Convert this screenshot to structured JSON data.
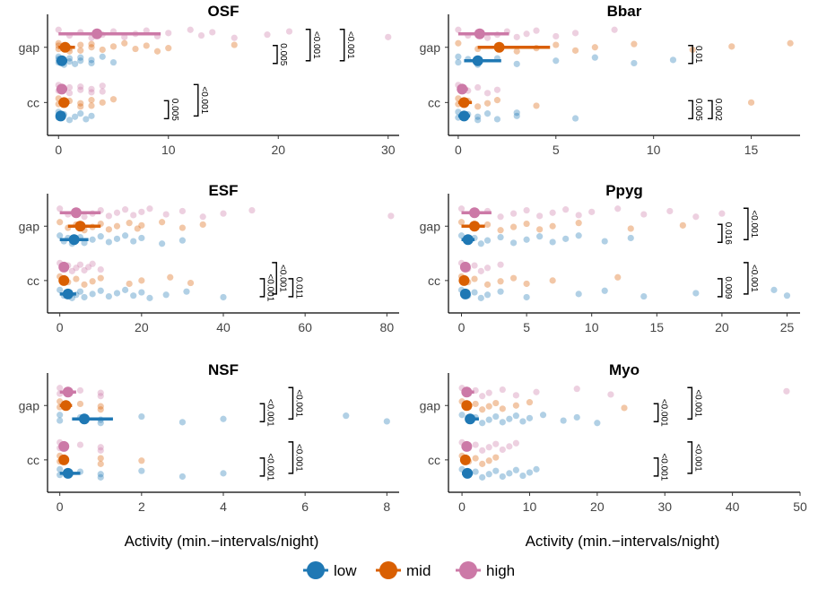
{
  "colors": {
    "low": "#1f78b4",
    "mid": "#d95f02",
    "high": "#cc79a7"
  },
  "xlabel": "Activity (min.−intervals/night)",
  "legend": {
    "position": "bottom",
    "items": [
      {
        "key": "low",
        "label": "low"
      },
      {
        "key": "mid",
        "label": "mid"
      },
      {
        "key": "high",
        "label": "high"
      }
    ]
  },
  "chart_data": [
    {
      "type": "scatter",
      "title": "OSF",
      "xlim": [
        -1,
        31
      ],
      "xticks": [
        0,
        10,
        20,
        30
      ],
      "yticks": [
        "gap",
        "cc"
      ],
      "series": {
        "gap": {
          "low": {
            "points": [
              0,
              0,
              0,
              0.5,
              1,
              1,
              1.5,
              2,
              2,
              3,
              3,
              4,
              5
            ],
            "mean": 0.3,
            "ci": [
              0,
              0.8
            ]
          },
          "mid": {
            "points": [
              0,
              0,
              0,
              1,
              1,
              2,
              2,
              3,
              3,
              4,
              5,
              6,
              7,
              8,
              9,
              10,
              16
            ],
            "mean": 0.6,
            "ci": [
              0,
              1.5
            ]
          },
          "high": {
            "points": [
              0,
              1,
              2,
              3,
              4,
              5,
              6,
              7,
              8,
              9,
              10,
              12,
              13,
              14,
              16,
              19,
              21,
              30
            ],
            "mean": 3.5,
            "ci": [
              0,
              9.3
            ]
          }
        },
        "cc": {
          "low": {
            "points": [
              0,
              0,
              0.5,
              1,
              1.5,
              2,
              2.5,
              3
            ],
            "mean": 0.2,
            "ci": [
              0,
              0.6
            ]
          },
          "mid": {
            "points": [
              0,
              0,
              1,
              2,
              2,
              3,
              3,
              4,
              5
            ],
            "mean": 0.5,
            "ci": [
              0,
              1.0
            ]
          },
          "high": {
            "points": [
              0,
              0,
              1,
              1,
              2,
              2,
              3,
              3,
              4,
              4
            ],
            "mean": 0.3,
            "ci": [
              0,
              0.8
            ]
          }
        }
      },
      "sig": [
        {
          "row": "gap",
          "label": "0.005",
          "x": 19.9
        },
        {
          "row": "gap",
          "label": "<0.001",
          "x": 22.9
        },
        {
          "row": "gap",
          "label": "<0.001",
          "x": 26.0
        },
        {
          "row": "cc",
          "label": "0.005",
          "x": 10.0
        },
        {
          "row": "cc",
          "label": "<0.001",
          "x": 12.7
        }
      ]
    },
    {
      "type": "scatter",
      "title": "Bbar",
      "xlim": [
        -0.5,
        17.5
      ],
      "xticks": [
        0,
        5,
        10,
        15
      ],
      "yticks": [
        "gap",
        "cc"
      ],
      "series": {
        "gap": {
          "low": {
            "points": [
              0,
              0,
              0.5,
              1,
              1,
              2,
              3,
              5,
              7,
              9,
              11
            ],
            "mean": 1.0,
            "ci": [
              0.3,
              2.2
            ]
          },
          "mid": {
            "points": [
              0,
              1,
              2,
              3,
              4,
              5,
              6,
              7,
              9,
              12,
              14,
              17
            ],
            "mean": 2.1,
            "ci": [
              1.0,
              4.7
            ]
          },
          "high": {
            "points": [
              0,
              0.5,
              1,
              1.5,
              2,
              2.5,
              3,
              3.5,
              4,
              5,
              6,
              8
            ],
            "mean": 1.1,
            "ci": [
              0,
              2.6
            ]
          }
        },
        "cc": {
          "low": {
            "points": [
              0,
              0,
              0.5,
              1,
              1,
              1.5,
              2,
              3,
              3,
              6
            ],
            "mean": 0.3,
            "ci": [
              0,
              0.6
            ]
          },
          "mid": {
            "points": [
              0,
              0,
              0.5,
              1,
              1.5,
              2,
              4,
              15
            ],
            "mean": 0.3,
            "ci": [
              0,
              0.7
            ]
          },
          "high": {
            "points": [
              0,
              0.5,
              1,
              1.5,
              2
            ],
            "mean": 0.2,
            "ci": [
              0,
              0.5
            ]
          }
        }
      },
      "sig": [
        {
          "row": "gap",
          "label": "0.01",
          "x": 12.0
        },
        {
          "row": "cc",
          "label": "0.005",
          "x": 12.0
        },
        {
          "row": "cc",
          "label": "0.002",
          "x": 13.0
        }
      ]
    },
    {
      "type": "scatter",
      "title": "ESF",
      "xlim": [
        -3,
        83
      ],
      "xticks": [
        0,
        20,
        40,
        60,
        80
      ],
      "yticks": [
        "gap",
        "cc"
      ],
      "series": {
        "gap": {
          "low": {
            "points": [
              0,
              1,
              2,
              3,
              4,
              5,
              6,
              8,
              10,
              12,
              14,
              16,
              18,
              20,
              25,
              30
            ],
            "mean": 3.5,
            "ci": [
              0,
              7
            ]
          },
          "mid": {
            "points": [
              0,
              2,
              4,
              6,
              8,
              10,
              12,
              14,
              17,
              19,
              20,
              25,
              30,
              35
            ],
            "mean": 5,
            "ci": [
              2,
              10
            ]
          },
          "high": {
            "points": [
              0,
              2,
              4,
              6,
              8,
              10,
              12,
              14,
              16,
              18,
              20,
              22,
              26,
              30,
              35,
              40,
              47,
              81
            ],
            "mean": 4,
            "ci": [
              0,
              10
            ]
          }
        },
        "cc": {
          "low": {
            "points": [
              0,
              1,
              2,
              3,
              4,
              5,
              6,
              8,
              10,
              12,
              14,
              16,
              18,
              20,
              22,
              26,
              31,
              40
            ],
            "mean": 2,
            "ci": [
              0,
              4
            ]
          },
          "mid": {
            "points": [
              0,
              2,
              4,
              6,
              8,
              10,
              17,
              20,
              27,
              32
            ],
            "mean": 1,
            "ci": [
              0,
              2
            ]
          },
          "high": {
            "points": [
              0,
              1,
              2,
              3,
              4,
              5,
              6,
              7,
              8,
              10
            ],
            "mean": 1,
            "ci": [
              0,
              2
            ]
          }
        }
      },
      "sig": [
        {
          "row": "cc",
          "label": "<0.001",
          "x": 50.0
        },
        {
          "row": "cc",
          "label": "<0.001",
          "x": 53.0
        },
        {
          "row": "cc",
          "label": "0.011",
          "x": 57.0
        }
      ]
    },
    {
      "type": "scatter",
      "title": "Ppyg",
      "xlim": [
        -1,
        26
      ],
      "xticks": [
        0,
        5,
        10,
        15,
        20,
        25
      ],
      "yticks": [
        "gap",
        "cc"
      ],
      "series": {
        "gap": {
          "low": {
            "points": [
              0,
              0.5,
              1,
              1.5,
              2,
              3,
              4,
              5,
              6,
              7,
              8,
              9,
              11,
              13
            ],
            "mean": 0.5,
            "ci": [
              0,
              1
            ]
          },
          "mid": {
            "points": [
              0,
              1,
              2,
              3,
              4,
              5,
              6,
              7,
              9,
              13,
              17
            ],
            "mean": 1.0,
            "ci": [
              0,
              1.8
            ]
          },
          "high": {
            "points": [
              0,
              1,
              2,
              3,
              4,
              5,
              6,
              7,
              8,
              9,
              10,
              12,
              14,
              16,
              18,
              20
            ],
            "mean": 1.0,
            "ci": [
              0,
              2.3
            ]
          }
        },
        "cc": {
          "low": {
            "points": [
              0,
              0.5,
              1,
              1.5,
              2,
              3,
              5,
              9,
              11,
              14,
              18,
              24,
              25
            ],
            "mean": 0.3,
            "ci": [
              0,
              0.6
            ]
          },
          "mid": {
            "points": [
              0,
              0.5,
              1,
              2,
              3,
              4,
              5,
              7,
              12
            ],
            "mean": 0.2,
            "ci": [
              0,
              0.5
            ]
          },
          "high": {
            "points": [
              0,
              0.5,
              1,
              1.5,
              2,
              3
            ],
            "mean": 0.3,
            "ci": [
              0,
              0.6
            ]
          }
        }
      },
      "sig": [
        {
          "row": "gap",
          "label": "0.016",
          "x": 20.0
        },
        {
          "row": "gap",
          "label": "<0.001",
          "x": 22.0
        },
        {
          "row": "cc",
          "label": "0.009",
          "x": 20.0
        },
        {
          "row": "cc",
          "label": "<0.001",
          "x": 22.0
        }
      ]
    },
    {
      "type": "scatter",
      "title": "NSF",
      "xlim": [
        -0.3,
        8.3
      ],
      "xticks": [
        0,
        2,
        4,
        6,
        8
      ],
      "yticks": [
        "gap",
        "cc"
      ],
      "series": {
        "gap": {
          "low": {
            "points": [
              0,
              0,
              0.5,
              1,
              1,
              2,
              3,
              4,
              7,
              8
            ],
            "mean": 0.6,
            "ci": [
              0.3,
              1.3
            ]
          },
          "mid": {
            "points": [
              0,
              0,
              0.5,
              1,
              1
            ],
            "mean": 0.15,
            "ci": [
              0,
              0.3
            ]
          },
          "high": {
            "points": [
              0,
              0,
              0.5,
              1,
              1
            ],
            "mean": 0.2,
            "ci": [
              0,
              0.4
            ]
          }
        },
        "cc": {
          "low": {
            "points": [
              0,
              0,
              0.5,
              1,
              1,
              2,
              3,
              4
            ],
            "mean": 0.2,
            "ci": [
              0,
              0.5
            ]
          },
          "mid": {
            "points": [
              0,
              0,
              1,
              1,
              2
            ],
            "mean": 0.1,
            "ci": [
              0,
              0.2
            ]
          },
          "high": {
            "points": [
              0,
              0,
              0.5,
              1,
              1
            ],
            "mean": 0.1,
            "ci": [
              0,
              0.2
            ]
          }
        }
      },
      "sig": [
        {
          "row": "gap",
          "label": "<0.001",
          "x": 5.0
        },
        {
          "row": "gap",
          "label": "<0.001",
          "x": 5.7
        },
        {
          "row": "cc",
          "label": "<0.001",
          "x": 5.0
        },
        {
          "row": "cc",
          "label": "<0.001",
          "x": 5.7
        }
      ]
    },
    {
      "type": "scatter",
      "title": "Myo",
      "xlim": [
        -2,
        50
      ],
      "xticks": [
        0,
        10,
        20,
        30,
        40,
        50
      ],
      "yticks": [
        "gap",
        "cc"
      ],
      "series": {
        "gap": {
          "low": {
            "points": [
              0,
              1,
              2,
              3,
              4,
              5,
              6,
              7,
              8,
              9,
              10,
              12,
              15,
              17,
              20
            ],
            "mean": 1.2,
            "ci": [
              0.5,
              2.5
            ]
          },
          "mid": {
            "points": [
              0,
              1,
              2,
              3,
              4,
              5,
              6,
              8,
              10,
              24
            ],
            "mean": 0.7,
            "ci": [
              0,
              1.5
            ]
          },
          "high": {
            "points": [
              0,
              1,
              2,
              3,
              4,
              6,
              8,
              11,
              17,
              22,
              48
            ],
            "mean": 0.7,
            "ci": [
              0,
              1.8
            ]
          }
        },
        "cc": {
          "low": {
            "points": [
              0,
              1,
              2,
              3,
              4,
              5,
              6,
              7,
              8,
              9,
              10,
              11
            ],
            "mean": 0.8,
            "ci": [
              0,
              1.6
            ]
          },
          "mid": {
            "points": [
              0,
              1,
              2,
              3,
              4,
              5
            ],
            "mean": 0.5,
            "ci": [
              0,
              1.1
            ]
          },
          "high": {
            "points": [
              0,
              1,
              2,
              3,
              4,
              5,
              6,
              7,
              8
            ],
            "mean": 0.7,
            "ci": [
              0,
              1.4
            ]
          }
        }
      },
      "sig": [
        {
          "row": "gap",
          "label": "<0.001",
          "x": 29.0
        },
        {
          "row": "gap",
          "label": "<0.001",
          "x": 34.0
        },
        {
          "row": "cc",
          "label": "<0.001",
          "x": 29.0
        },
        {
          "row": "cc",
          "label": "<0.001",
          "x": 34.0
        }
      ]
    }
  ]
}
